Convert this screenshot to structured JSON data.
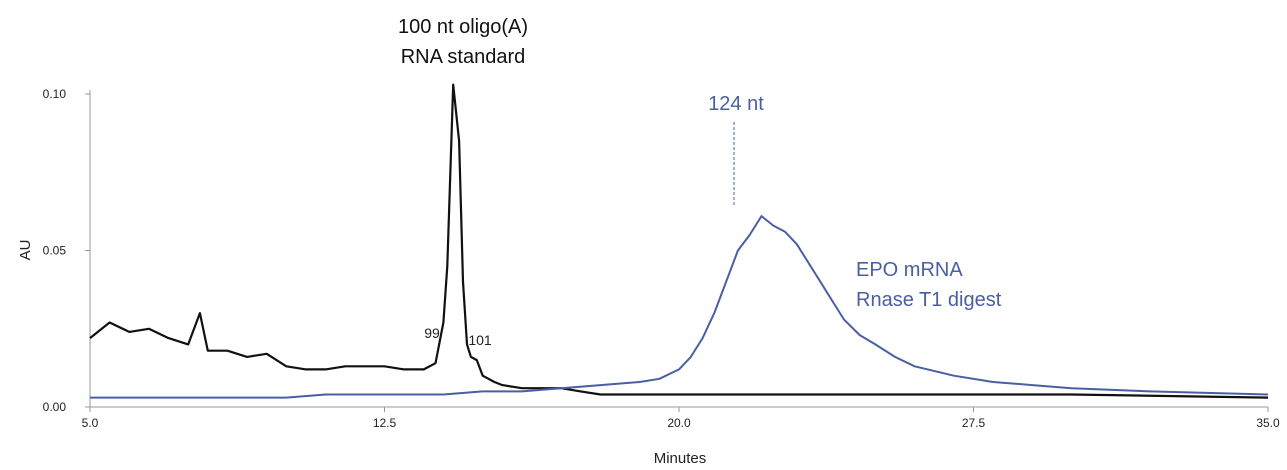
{
  "chart_data": {
    "type": "line",
    "title": "",
    "xlabel": "Minutes",
    "ylabel": "AU",
    "xlim": [
      5.0,
      35.0
    ],
    "ylim": [
      0.0,
      0.1
    ],
    "x_ticks": [
      "5.0",
      "12.5",
      "20.0",
      "27.5",
      "35.0"
    ],
    "y_ticks": [
      "0.00",
      "0.05",
      "0.10"
    ],
    "grid": false,
    "legend": "none",
    "annotations": {
      "standard_line1": "100 nt oligo(A)",
      "standard_line2": "RNA standard",
      "peak_99": "99",
      "peak_101": "101",
      "epo_peak": "124 nt",
      "epo_line1": "EPO mRNA",
      "epo_line2": "Rnase T1 digest"
    },
    "colors": {
      "standard": "#111111",
      "epo": "#4a5fa3",
      "axis": "#999999"
    },
    "series": [
      {
        "key": "standard",
        "x": [
          5.0,
          5.5,
          6.0,
          6.5,
          7.0,
          7.5,
          7.8,
          8.0,
          8.5,
          9.0,
          9.5,
          10.0,
          10.5,
          11.0,
          11.5,
          12.0,
          12.5,
          13.0,
          13.5,
          13.8,
          14.0,
          14.1,
          14.25,
          14.4,
          14.5,
          14.6,
          14.7,
          14.85,
          15.0,
          15.3,
          15.5,
          16.0,
          17.0,
          17.5,
          18.0,
          20.0,
          22.0,
          25.0,
          30.0,
          35.0
        ],
        "y": [
          0.022,
          0.027,
          0.024,
          0.025,
          0.022,
          0.02,
          0.03,
          0.018,
          0.018,
          0.016,
          0.017,
          0.013,
          0.012,
          0.012,
          0.013,
          0.013,
          0.013,
          0.012,
          0.012,
          0.014,
          0.027,
          0.045,
          0.103,
          0.085,
          0.04,
          0.02,
          0.016,
          0.015,
          0.01,
          0.008,
          0.007,
          0.006,
          0.006,
          0.005,
          0.004,
          0.004,
          0.004,
          0.004,
          0.004,
          0.003
        ]
      },
      {
        "key": "epo",
        "x": [
          5.0,
          6.0,
          7.0,
          8.0,
          9.0,
          10.0,
          11.0,
          12.0,
          13.0,
          14.0,
          15.0,
          16.0,
          17.0,
          18.0,
          19.0,
          19.5,
          20.0,
          20.3,
          20.6,
          20.9,
          21.2,
          21.5,
          21.8,
          22.1,
          22.4,
          22.7,
          23.0,
          23.3,
          23.6,
          23.9,
          24.2,
          24.6,
          25.0,
          25.5,
          26.0,
          27.0,
          28.0,
          29.0,
          30.0,
          32.0,
          35.0
        ],
        "y": [
          0.003,
          0.003,
          0.003,
          0.003,
          0.003,
          0.003,
          0.004,
          0.004,
          0.004,
          0.004,
          0.005,
          0.005,
          0.006,
          0.007,
          0.008,
          0.009,
          0.012,
          0.016,
          0.022,
          0.03,
          0.04,
          0.05,
          0.055,
          0.061,
          0.058,
          0.056,
          0.052,
          0.046,
          0.04,
          0.034,
          0.028,
          0.023,
          0.02,
          0.016,
          0.013,
          0.01,
          0.008,
          0.007,
          0.006,
          0.005,
          0.004
        ]
      }
    ]
  }
}
